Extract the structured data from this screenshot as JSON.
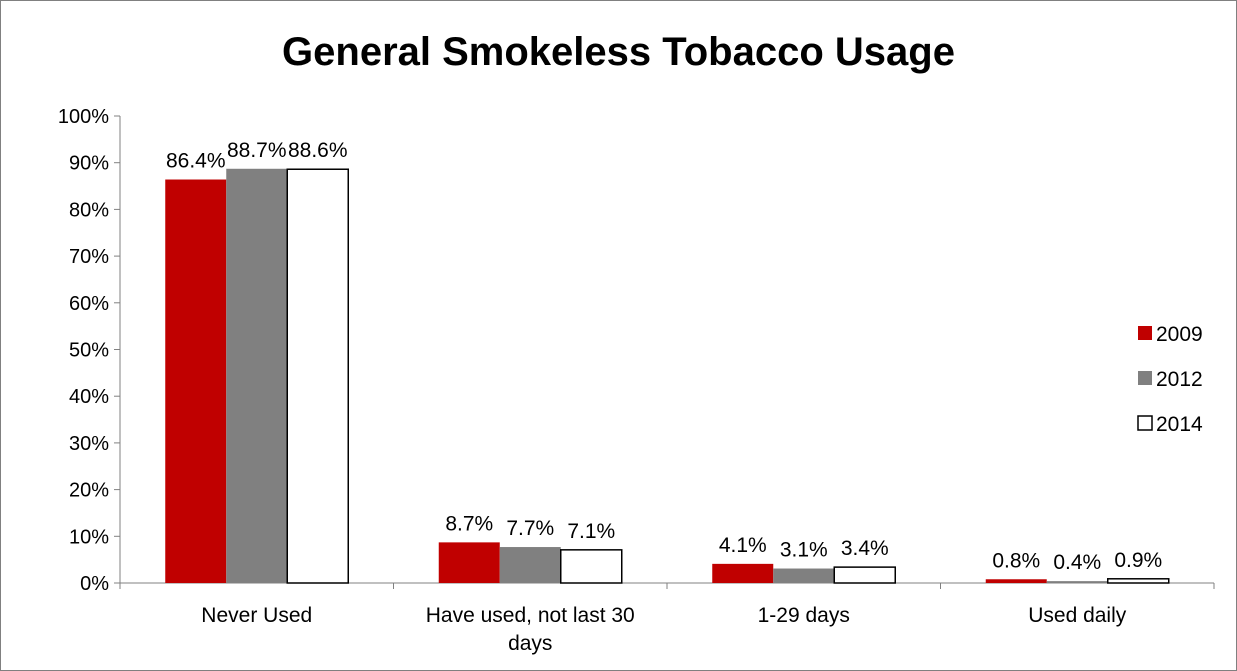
{
  "chart_data": {
    "type": "bar",
    "title": "General Smokeless Tobacco Usage",
    "xlabel": "",
    "ylabel": "",
    "ylim": [
      0,
      100
    ],
    "y_ticks": [
      "0%",
      "10%",
      "20%",
      "30%",
      "40%",
      "50%",
      "60%",
      "70%",
      "80%",
      "90%",
      "100%"
    ],
    "categories": [
      "Never Used",
      "Have used, not last 30 days",
      "1-29 days",
      "Used daily"
    ],
    "category_lines": [
      [
        "Never Used"
      ],
      [
        "Have used, not last 30",
        "days"
      ],
      [
        "1-29 days"
      ],
      [
        "Used daily"
      ]
    ],
    "series": [
      {
        "name": "2009",
        "values": [
          86.4,
          8.7,
          4.1,
          0.8
        ],
        "labels": [
          "86.4%",
          "8.7%",
          "4.1%",
          "0.8%"
        ],
        "color": "#c00000",
        "stroke": "none"
      },
      {
        "name": "2012",
        "values": [
          88.7,
          7.7,
          3.1,
          0.4
        ],
        "labels": [
          "88.7%",
          "7.7%",
          "3.1%",
          "0.4%"
        ],
        "color": "#808080",
        "stroke": "none"
      },
      {
        "name": "2014",
        "values": [
          88.6,
          7.1,
          3.4,
          0.9
        ],
        "labels": [
          "88.6%",
          "7.1%",
          "3.4%",
          "0.9%"
        ],
        "color": "#ffffff",
        "stroke": "#000000"
      }
    ],
    "grid": false,
    "legend": "right"
  }
}
